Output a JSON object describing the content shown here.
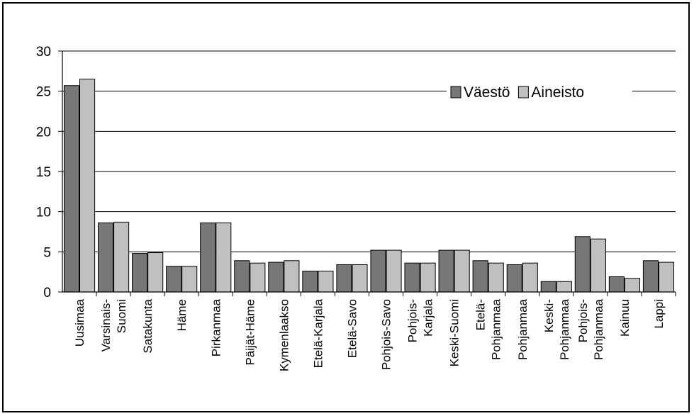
{
  "chart_data": {
    "type": "bar",
    "title": "",
    "xlabel": "",
    "ylabel": "",
    "ylim": [
      0,
      30
    ],
    "yticks": [
      0,
      5,
      10,
      15,
      20,
      25,
      30
    ],
    "grid": true,
    "legend_position": "top-right",
    "categories": [
      [
        "Uusimaa"
      ],
      [
        "Varsinais-",
        "Suomi"
      ],
      [
        "Satakunta"
      ],
      [
        "Häme"
      ],
      [
        "Pirkanmaa"
      ],
      [
        "Päijät-Häme"
      ],
      [
        "Kymenlaakso"
      ],
      [
        "Etelä-Karjala"
      ],
      [
        "Etelä-Savo"
      ],
      [
        "Pohjois-Savo"
      ],
      [
        "Pohjois-",
        "Karjala"
      ],
      [
        "Keski-Suomi"
      ],
      [
        "Etelä-",
        "Pohjanmaa"
      ],
      [
        "Pohjanmaa"
      ],
      [
        "Keski-",
        "Pohjanmaa"
      ],
      [
        "Pohjois-",
        "Pohjanmaa"
      ],
      [
        "Kainuu"
      ],
      [
        "Lappi"
      ]
    ],
    "series": [
      {
        "name": "Väestö",
        "color": "#777777",
        "values": [
          25.7,
          8.6,
          4.8,
          3.2,
          8.6,
          3.9,
          3.7,
          2.6,
          3.4,
          5.2,
          3.6,
          5.2,
          3.9,
          3.4,
          1.3,
          6.9,
          1.9,
          3.9
        ]
      },
      {
        "name": "Aineisto",
        "color": "#c0c0c0",
        "values": [
          26.5,
          8.7,
          4.9,
          3.2,
          8.6,
          3.6,
          3.9,
          2.6,
          3.4,
          5.2,
          3.6,
          5.2,
          3.6,
          3.6,
          1.3,
          6.6,
          1.7,
          3.7
        ]
      }
    ]
  }
}
